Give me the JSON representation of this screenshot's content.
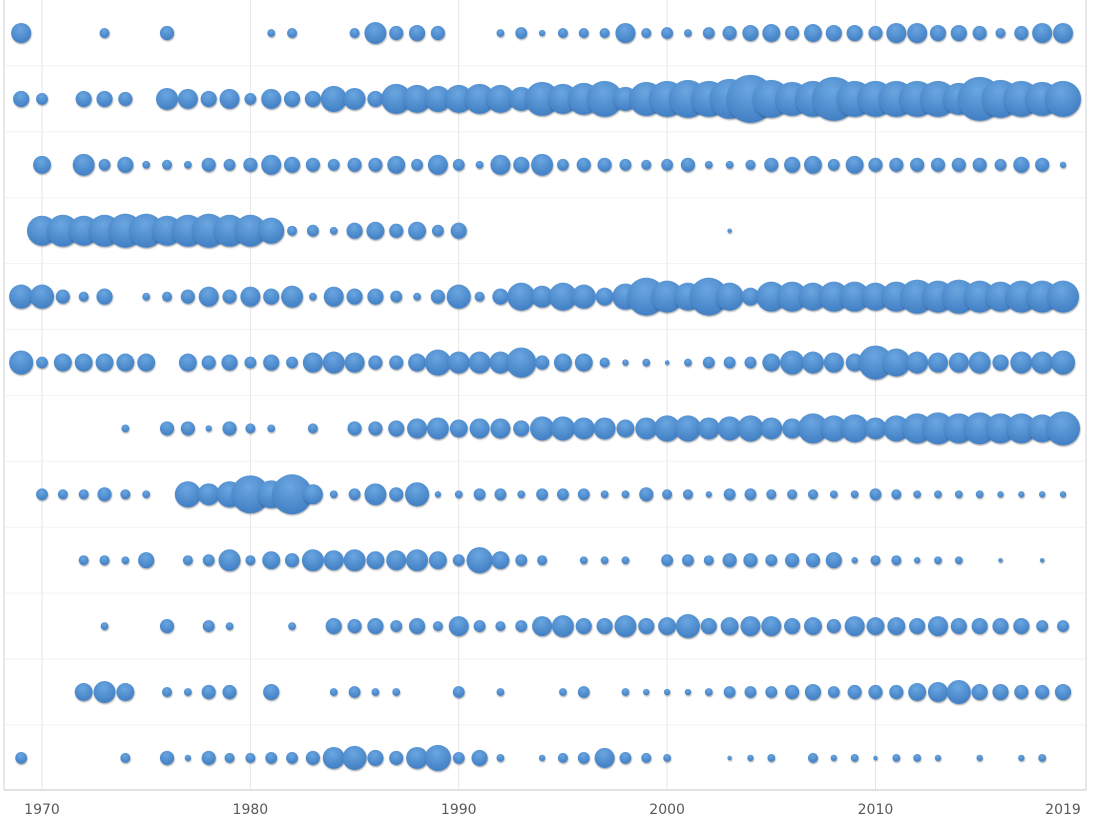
{
  "chart_data": {
    "type": "scatter",
    "subtype": "bubble",
    "title": "",
    "xlabel": "",
    "ylabel": "",
    "xlim": [
      1969,
      2019
    ],
    "x_ticks": [
      "1970",
      "1980",
      "1990",
      "2000",
      "2010",
      "2019"
    ],
    "grid": "vertical at tick years, horizontal row separators",
    "legend": "none",
    "colors": {
      "bubble_light": "#6aa6e0",
      "bubble_dark": "#3e7cc2",
      "grid": "#e6e6e6",
      "axis": "#d9d9d9"
    },
    "size_encoding": "bubble area proportional to value (relative units)",
    "years_start": 1969,
    "years_end": 2019,
    "rows": [
      [
        20,
        0,
        0,
        0,
        5,
        0,
        0,
        10,
        0,
        0,
        0,
        0,
        3,
        5,
        0,
        0,
        5,
        24,
        10,
        13,
        10,
        0,
        0,
        3,
        7,
        2,
        5,
        5,
        5,
        20,
        5,
        7,
        3,
        7,
        10,
        13,
        16,
        10,
        16,
        13,
        13,
        10,
        20,
        20,
        13,
        13,
        10,
        5,
        10,
        20,
        20
      ],
      [
        13,
        7,
        0,
        13,
        13,
        10,
        0,
        24,
        20,
        13,
        20,
        7,
        20,
        13,
        13,
        34,
        24,
        13,
        45,
        39,
        34,
        39,
        45,
        39,
        29,
        58,
        45,
        51,
        65,
        29,
        58,
        65,
        72,
        65,
        80,
        115,
        72,
        58,
        65,
        97,
        65,
        65,
        65,
        65,
        65,
        51,
        97,
        72,
        65,
        58,
        65
      ],
      [
        0,
        16,
        0,
        24,
        7,
        13,
        3,
        5,
        3,
        10,
        7,
        10,
        20,
        13,
        10,
        7,
        10,
        10,
        16,
        7,
        20,
        7,
        3,
        20,
        13,
        24,
        7,
        10,
        10,
        7,
        5,
        7,
        10,
        3,
        3,
        5,
        10,
        13,
        16,
        7,
        16,
        10,
        10,
        10,
        10,
        10,
        10,
        7,
        13,
        10,
        2
      ],
      [
        0,
        45,
        51,
        45,
        51,
        58,
        58,
        45,
        51,
        58,
        51,
        51,
        34,
        5,
        7,
        3,
        13,
        16,
        10,
        16,
        7,
        13,
        0,
        0,
        0,
        0,
        0,
        0,
        0,
        0,
        0,
        0,
        0,
        0,
        1,
        0,
        0,
        0,
        0,
        0,
        0,
        0,
        0,
        0,
        0,
        0,
        0,
        0,
        0,
        0,
        0
      ],
      [
        29,
        29,
        10,
        5,
        13,
        0,
        3,
        5,
        10,
        20,
        10,
        20,
        13,
        24,
        3,
        20,
        13,
        13,
        7,
        3,
        10,
        29,
        5,
        13,
        39,
        24,
        39,
        29,
        16,
        34,
        72,
        51,
        39,
        72,
        39,
        16,
        45,
        45,
        39,
        45,
        45,
        39,
        45,
        58,
        51,
        58,
        51,
        45,
        51,
        51,
        51
      ],
      [
        29,
        7,
        16,
        16,
        16,
        16,
        16,
        0,
        16,
        10,
        13,
        7,
        13,
        7,
        20,
        24,
        20,
        10,
        10,
        16,
        34,
        24,
        24,
        24,
        45,
        10,
        16,
        16,
        5,
        2,
        3,
        1,
        3,
        7,
        7,
        7,
        16,
        29,
        24,
        20,
        16,
        58,
        39,
        24,
        20,
        20,
        24,
        13,
        24,
        24,
        29
      ],
      [
        0,
        0,
        0,
        0,
        0,
        3,
        0,
        10,
        10,
        2,
        10,
        5,
        3,
        0,
        5,
        0,
        10,
        10,
        13,
        20,
        24,
        16,
        20,
        20,
        13,
        29,
        29,
        24,
        24,
        16,
        24,
        34,
        34,
        24,
        29,
        34,
        24,
        20,
        45,
        34,
        39,
        24,
        34,
        45,
        51,
        45,
        51,
        45,
        45,
        39,
        58
      ],
      [
        0,
        7,
        5,
        5,
        10,
        5,
        3,
        0,
        34,
        24,
        34,
        72,
        39,
        80,
        20,
        3,
        7,
        24,
        10,
        29,
        2,
        3,
        7,
        7,
        3,
        7,
        7,
        7,
        3,
        3,
        10,
        5,
        5,
        2,
        7,
        7,
        5,
        5,
        5,
        3,
        3,
        7,
        5,
        3,
        3,
        3,
        3,
        2,
        2,
        2,
        2
      ],
      [
        0,
        0,
        0,
        5,
        5,
        3,
        13,
        0,
        5,
        7,
        24,
        5,
        16,
        10,
        24,
        20,
        24,
        16,
        20,
        24,
        16,
        7,
        34,
        16,
        7,
        5,
        0,
        3,
        3,
        3,
        0,
        7,
        7,
        5,
        10,
        10,
        7,
        10,
        10,
        13,
        2,
        5,
        5,
        2,
        3,
        3,
        0,
        1,
        0,
        1,
        0
      ],
      [
        0,
        0,
        0,
        0,
        3,
        0,
        0,
        10,
        0,
        7,
        3,
        0,
        0,
        3,
        0,
        13,
        10,
        13,
        7,
        13,
        5,
        20,
        7,
        5,
        7,
        20,
        24,
        13,
        13,
        24,
        13,
        16,
        29,
        13,
        16,
        20,
        20,
        13,
        16,
        10,
        20,
        16,
        16,
        13,
        20,
        13,
        13,
        13,
        13,
        7,
        7
      ],
      [
        0,
        0,
        0,
        16,
        24,
        16,
        0,
        5,
        3,
        10,
        10,
        0,
        13,
        0,
        0,
        3,
        7,
        3,
        3,
        0,
        0,
        7,
        0,
        3,
        0,
        0,
        3,
        7,
        0,
        3,
        2,
        2,
        2,
        3,
        7,
        7,
        7,
        10,
        13,
        7,
        10,
        10,
        10,
        16,
        20,
        29,
        13,
        13,
        10,
        10,
        13
      ],
      [
        7,
        0,
        0,
        0,
        0,
        5,
        0,
        10,
        2,
        10,
        5,
        5,
        7,
        7,
        10,
        24,
        29,
        13,
        10,
        24,
        34,
        7,
        13,
        3,
        0,
        2,
        5,
        7,
        20,
        7,
        5,
        3,
        0,
        0,
        1,
        2,
        3,
        0,
        5,
        2,
        3,
        1,
        3,
        3,
        2,
        0,
        2,
        0,
        2,
        3,
        0
      ]
    ]
  }
}
